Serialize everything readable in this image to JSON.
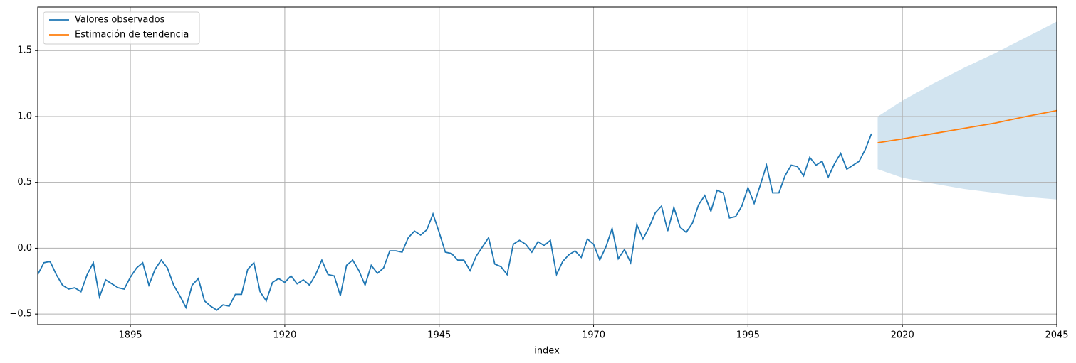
{
  "chart_data": {
    "type": "line",
    "xlabel": "index",
    "xlim": [
      1880,
      2045
    ],
    "xticks": [
      1895,
      1920,
      1945,
      1970,
      1995,
      2020,
      2045
    ],
    "ylim": [
      -0.58,
      1.83
    ],
    "yticks": [
      {
        "value": -0.5,
        "label": "−0.5"
      },
      {
        "value": 0,
        "label": "0.0"
      },
      {
        "value": 0.5,
        "label": "0.5"
      },
      {
        "value": 1,
        "label": "1.0"
      },
      {
        "value": 1.5,
        "label": "1.5"
      }
    ],
    "grid": true,
    "legend": "upper left",
    "series": [
      {
        "name": "Valores observados",
        "color": "#1f77b4",
        "x": [
          1880,
          1881,
          1882,
          1883,
          1884,
          1885,
          1886,
          1887,
          1888,
          1889,
          1890,
          1891,
          1892,
          1893,
          1894,
          1895,
          1896,
          1897,
          1898,
          1899,
          1900,
          1901,
          1902,
          1903,
          1904,
          1905,
          1906,
          1907,
          1908,
          1909,
          1910,
          1911,
          1912,
          1913,
          1914,
          1915,
          1916,
          1917,
          1918,
          1919,
          1920,
          1921,
          1922,
          1923,
          1924,
          1925,
          1926,
          1927,
          1928,
          1929,
          1930,
          1931,
          1932,
          1933,
          1934,
          1935,
          1936,
          1937,
          1938,
          1939,
          1940,
          1941,
          1942,
          1943,
          1944,
          1945,
          1946,
          1947,
          1948,
          1949,
          1950,
          1951,
          1952,
          1953,
          1954,
          1955,
          1956,
          1957,
          1958,
          1959,
          1960,
          1961,
          1962,
          1963,
          1964,
          1965,
          1966,
          1967,
          1968,
          1969,
          1970,
          1971,
          1972,
          1973,
          1974,
          1975,
          1976,
          1977,
          1978,
          1979,
          1980,
          1981,
          1982,
          1983,
          1984,
          1985,
          1986,
          1987,
          1988,
          1989,
          1990,
          1991,
          1992,
          1993,
          1994,
          1995,
          1996,
          1997,
          1998,
          1999,
          2000,
          2001,
          2002,
          2003,
          2004,
          2005,
          2006,
          2007,
          2008,
          2009,
          2010,
          2011,
          2012,
          2013,
          2014,
          2015
        ],
        "values": [
          -0.2,
          -0.11,
          -0.1,
          -0.2,
          -0.28,
          -0.31,
          -0.3,
          -0.33,
          -0.2,
          -0.11,
          -0.37,
          -0.24,
          -0.27,
          -0.3,
          -0.31,
          -0.22,
          -0.15,
          -0.11,
          -0.28,
          -0.16,
          -0.09,
          -0.15,
          -0.28,
          -0.36,
          -0.45,
          -0.28,
          -0.23,
          -0.4,
          -0.44,
          -0.47,
          -0.43,
          -0.44,
          -0.35,
          -0.35,
          -0.16,
          -0.11,
          -0.33,
          -0.4,
          -0.26,
          -0.23,
          -0.26,
          -0.21,
          -0.27,
          -0.24,
          -0.28,
          -0.2,
          -0.09,
          -0.2,
          -0.21,
          -0.36,
          -0.13,
          -0.09,
          -0.17,
          -0.28,
          -0.13,
          -0.19,
          -0.15,
          -0.02,
          -0.02,
          -0.03,
          0.08,
          0.13,
          0.1,
          0.14,
          0.26,
          0.12,
          -0.03,
          -0.04,
          -0.09,
          -0.09,
          -0.17,
          -0.06,
          0.01,
          0.08,
          -0.12,
          -0.14,
          -0.2,
          0.03,
          0.06,
          0.03,
          -0.03,
          0.05,
          0.02,
          0.06,
          -0.2,
          -0.1,
          -0.05,
          -0.02,
          -0.07,
          0.07,
          0.03,
          -0.09,
          0.01,
          0.15,
          -0.08,
          -0.01,
          -0.11,
          0.18,
          0.07,
          0.16,
          0.27,
          0.32,
          0.13,
          0.31,
          0.16,
          0.12,
          0.19,
          0.33,
          0.4,
          0.28,
          0.44,
          0.42,
          0.23,
          0.24,
          0.32,
          0.46,
          0.34,
          0.48,
          0.63,
          0.42,
          0.42,
          0.55,
          0.63,
          0.62,
          0.55,
          0.69,
          0.63,
          0.66,
          0.54,
          0.64,
          0.72,
          0.6,
          0.63,
          0.66,
          0.75,
          0.87
        ]
      },
      {
        "name": "Estimación de tendencia",
        "color": "#ff7f0e",
        "x": [
          2016,
          2020,
          2025,
          2030,
          2035,
          2040,
          2045
        ],
        "values": [
          0.8,
          0.83,
          0.87,
          0.91,
          0.95,
          1.0,
          1.045
        ]
      }
    ],
    "band": {
      "color": "#1f77b4",
      "opacity": 0.2,
      "x": [
        2016,
        2020,
        2025,
        2030,
        2035,
        2040,
        2045
      ],
      "lower": [
        0.6,
        0.535,
        0.49,
        0.45,
        0.42,
        0.39,
        0.37
      ],
      "upper": [
        1.0,
        1.12,
        1.25,
        1.37,
        1.48,
        1.6,
        1.72
      ]
    }
  }
}
